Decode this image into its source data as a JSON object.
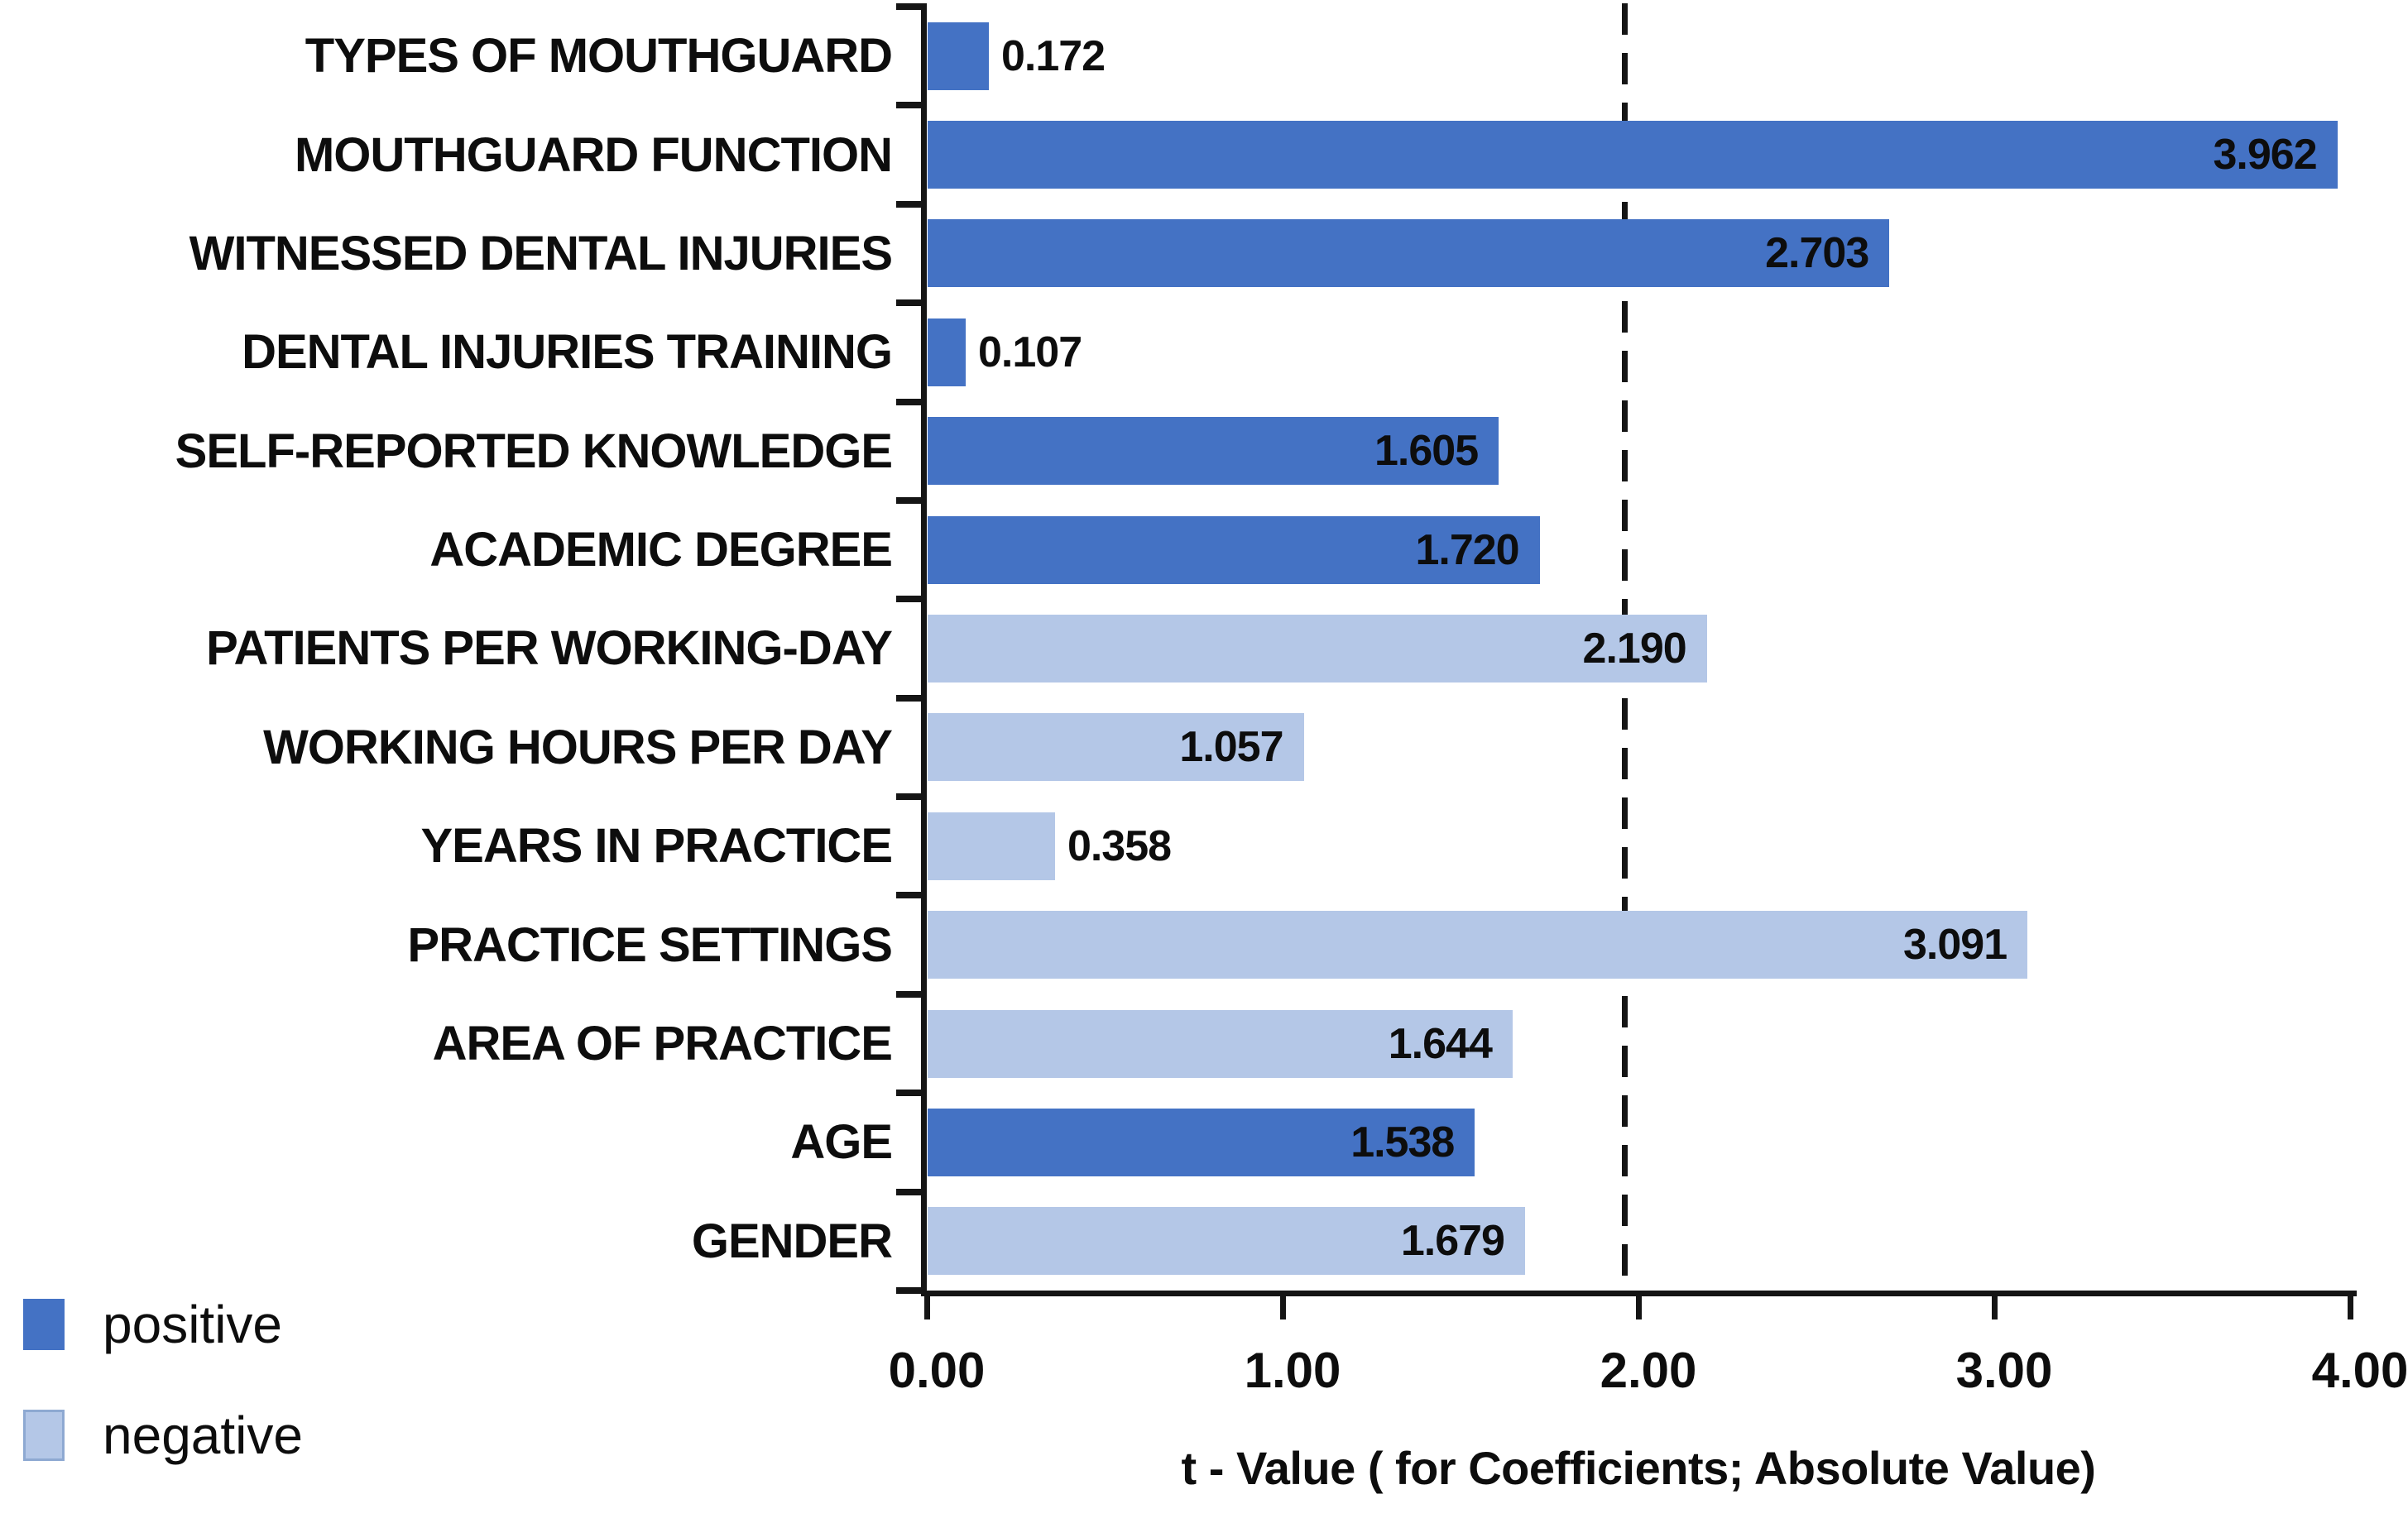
{
  "chart_data": {
    "type": "bar",
    "orientation": "horizontal",
    "title": "",
    "xlabel": "t - Value ( for Coefficients; Absolute Value)",
    "ylabel": "",
    "xlim": [
      0,
      4
    ],
    "xticks": [
      "0.00",
      "1.00",
      "2.00",
      "3.00",
      "4.00"
    ],
    "xtick_values": [
      0,
      1,
      2,
      3,
      4
    ],
    "grid": false,
    "legend_position": "bottom-left",
    "reference_line": {
      "value": 1.96,
      "style": "dashed",
      "color": "#151515"
    },
    "legend": [
      {
        "label": "positive",
        "color": "#4472C4"
      },
      {
        "label": "negative",
        "color": "#B4C7E7"
      }
    ],
    "bars": [
      {
        "label": "TYPES OF MOUTHGUARD",
        "value": 0.172,
        "value_label": "0.172",
        "group": "positive",
        "label_position": "outside"
      },
      {
        "label": "MOUTHGUARD FUNCTION",
        "value": 3.962,
        "value_label": "3.962",
        "group": "positive",
        "label_position": "inside"
      },
      {
        "label": "WITNESSED DENTAL INJURIES",
        "value": 2.703,
        "value_label": "2.703",
        "group": "positive",
        "label_position": "inside"
      },
      {
        "label": "DENTAL INJURIES TRAINING",
        "value": 0.107,
        "value_label": "0.107",
        "group": "positive",
        "label_position": "outside"
      },
      {
        "label": "SELF-REPORTED KNOWLEDGE",
        "value": 1.605,
        "value_label": "1.605",
        "group": "positive",
        "label_position": "inside"
      },
      {
        "label": "ACADEMIC DEGREE",
        "value": 1.72,
        "value_label": "1.720",
        "group": "positive",
        "label_position": "inside"
      },
      {
        "label": "PATIENTS PER WORKING-DAY",
        "value": 2.19,
        "value_label": "2.190",
        "group": "negative",
        "label_position": "inside"
      },
      {
        "label": "WORKING HOURS PER DAY",
        "value": 1.057,
        "value_label": "1.057",
        "group": "negative",
        "label_position": "inside"
      },
      {
        "label": "YEARS IN PRACTICE",
        "value": 0.358,
        "value_label": "0.358",
        "group": "negative",
        "label_position": "outside"
      },
      {
        "label": "PRACTICE SETTINGS",
        "value": 3.091,
        "value_label": "3.091",
        "group": "negative",
        "label_position": "inside"
      },
      {
        "label": "AREA OF PRACTICE",
        "value": 1.644,
        "value_label": "1.644",
        "group": "negative",
        "label_position": "inside"
      },
      {
        "label": "AGE",
        "value": 1.538,
        "value_label": "1.538",
        "group": "positive",
        "label_position": "inside"
      },
      {
        "label": "GENDER",
        "value": 1.679,
        "value_label": "1.679",
        "group": "negative",
        "label_position": "inside"
      }
    ]
  },
  "colors": {
    "positive": "#4472C4",
    "negative": "#B4C7E7",
    "negative_border": "#8EA9D2",
    "axis": "#151515",
    "text": "#0D0D0D",
    "background": "#FFFFFF"
  }
}
